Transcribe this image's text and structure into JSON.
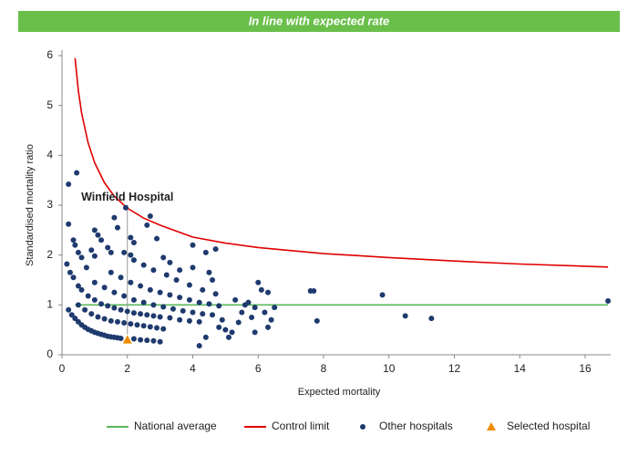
{
  "chart_data": {
    "type": "scatter",
    "title": "In line with expected rate",
    "x_label": "Expected mortality",
    "y_label": "Standardised mortality ratio",
    "xlim": [
      0,
      16.8
    ],
    "ylim": [
      0,
      6
    ],
    "xticks": [
      0,
      2,
      4,
      6,
      8,
      10,
      12,
      14,
      16
    ],
    "yticks": [
      0,
      1,
      2,
      3,
      4,
      5,
      6
    ],
    "grid": false,
    "legend": "bottom",
    "series": [
      {
        "name": "National average",
        "kind": "line",
        "color": "#5cb85c",
        "x": [
          0.4,
          16.7
        ],
        "values": [
          1,
          1
        ]
      },
      {
        "name": "Control limit",
        "kind": "line",
        "color": "#e00000",
        "x": [
          0.4,
          0.5,
          0.6,
          0.8,
          1.0,
          1.3,
          1.6,
          2.0,
          2.5,
          3.0,
          4.0,
          5.0,
          6.0,
          8.0,
          10.0,
          12.0,
          14.0,
          16.7
        ],
        "values": [
          5.95,
          5.3,
          4.85,
          4.25,
          3.85,
          3.45,
          3.18,
          2.94,
          2.74,
          2.6,
          2.36,
          2.24,
          2.15,
          2.03,
          1.95,
          1.88,
          1.82,
          1.76
        ]
      },
      {
        "name": "Other hospitals",
        "kind": "scatter",
        "marker": "circle",
        "color": "#1f3a6e",
        "x": [
          0.2,
          0.45,
          0.2,
          0.35,
          0.4,
          0.5,
          0.6,
          0.15,
          0.25,
          0.35,
          0.5,
          0.75,
          0.9,
          1.0,
          1.1,
          1.2,
          1.0,
          1.4,
          1.5,
          1.6,
          1.7,
          1.95,
          2.1,
          2.2,
          1.9,
          2.1,
          2.6,
          2.7,
          2.9,
          3.1,
          4.0,
          4.4,
          4.7,
          3.3,
          3.6,
          4.0,
          4.5,
          4.6,
          0.2,
          0.3,
          0.4,
          0.5,
          0.6,
          0.7,
          0.8,
          0.9,
          1.0,
          1.1,
          1.2,
          1.3,
          1.4,
          1.5,
          1.6,
          1.7,
          1.8,
          2.2,
          2.4,
          2.6,
          2.8,
          3.0,
          0.5,
          0.7,
          0.9,
          1.1,
          1.3,
          1.5,
          1.7,
          1.9,
          2.1,
          2.3,
          2.5,
          2.7,
          2.9,
          3.1,
          0.6,
          0.8,
          1.0,
          1.2,
          1.4,
          1.6,
          1.8,
          2.0,
          2.2,
          2.4,
          2.6,
          2.8,
          3.0,
          3.3,
          3.6,
          3.9,
          4.2,
          1.0,
          1.3,
          1.6,
          1.9,
          2.2,
          2.5,
          2.8,
          3.1,
          3.4,
          3.7,
          4.0,
          4.3,
          4.6,
          1.5,
          1.8,
          2.1,
          2.4,
          2.7,
          3.0,
          3.3,
          3.6,
          3.9,
          4.2,
          4.5,
          4.8,
          2.2,
          2.5,
          2.8,
          3.2,
          3.5,
          3.9,
          4.3,
          4.7,
          4.2,
          4.4,
          4.8,
          5.0,
          5.2,
          5.4,
          5.5,
          5.6,
          5.7,
          5.8,
          5.9,
          6.0,
          6.1,
          6.2,
          6.3,
          6.4,
          6.5,
          6.3,
          5.3,
          5.1,
          5.9,
          7.6,
          7.7,
          7.8,
          9.8,
          10.5,
          11.3,
          16.7,
          4.9
        ],
        "values": [
          3.42,
          3.65,
          2.62,
          2.3,
          2.2,
          2.05,
          1.95,
          1.82,
          1.65,
          1.55,
          1.38,
          1.75,
          2.1,
          2.5,
          2.4,
          2.3,
          1.98,
          2.15,
          2.05,
          2.75,
          2.55,
          2.95,
          2.35,
          2.25,
          2.05,
          2.0,
          2.6,
          2.78,
          2.33,
          1.95,
          2.2,
          2.05,
          2.12,
          1.85,
          1.7,
          1.75,
          1.65,
          1.5,
          0.9,
          0.8,
          0.73,
          0.66,
          0.6,
          0.55,
          0.51,
          0.48,
          0.45,
          0.43,
          0.41,
          0.39,
          0.37,
          0.36,
          0.35,
          0.34,
          0.33,
          0.32,
          0.3,
          0.29,
          0.28,
          0.26,
          1.0,
          0.9,
          0.82,
          0.76,
          0.72,
          0.68,
          0.66,
          0.64,
          0.62,
          0.6,
          0.58,
          0.56,
          0.54,
          0.52,
          1.3,
          1.18,
          1.1,
          1.02,
          0.98,
          0.94,
          0.9,
          0.87,
          0.84,
          0.82,
          0.8,
          0.78,
          0.76,
          0.74,
          0.7,
          0.68,
          0.66,
          1.45,
          1.35,
          1.25,
          1.18,
          1.1,
          1.05,
          1.0,
          0.96,
          0.92,
          0.88,
          0.85,
          0.82,
          0.8,
          1.65,
          1.55,
          1.45,
          1.38,
          1.3,
          1.25,
          1.2,
          1.15,
          1.1,
          1.05,
          1.02,
          0.98,
          1.9,
          1.8,
          1.7,
          1.6,
          1.5,
          1.4,
          1.3,
          1.22,
          0.18,
          0.35,
          0.55,
          0.5,
          0.45,
          0.65,
          0.85,
          1.0,
          1.05,
          0.75,
          0.95,
          1.45,
          1.3,
          0.85,
          1.25,
          0.7,
          0.95,
          0.55,
          1.1,
          0.35,
          0.45,
          1.28,
          1.28,
          0.68,
          1.2,
          0.78,
          0.73,
          1.08,
          0.7
        ]
      },
      {
        "name": "Selected hospital",
        "kind": "scatter",
        "marker": "triangle",
        "color": "#f08a00",
        "x": [
          2
        ],
        "values": [
          0.3
        ],
        "labels": [
          "Winfield Hospital"
        ]
      }
    ]
  }
}
